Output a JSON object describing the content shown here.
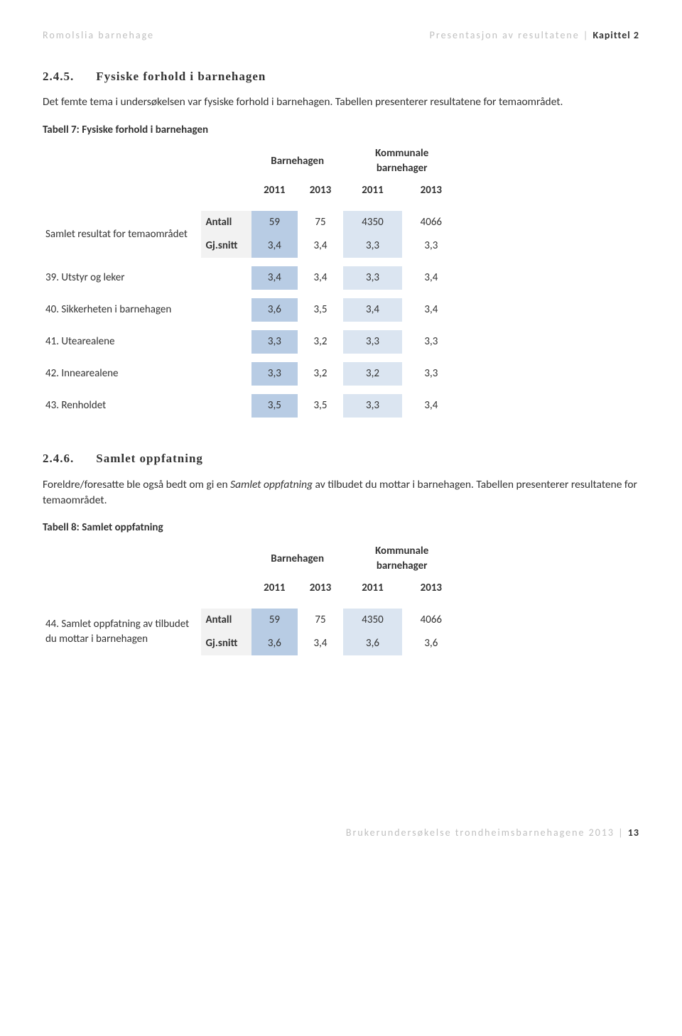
{
  "header": {
    "left": "Romolslia barnehage",
    "right_prefix": "Presentasjon av resultatene",
    "right_sep": " | ",
    "right_chapter": "Kapittel 2"
  },
  "colors": {
    "col1_bg": "#b8cce4",
    "col3_bg": "#dbe5f1",
    "label_bg": "#f2f2f2",
    "text": "#333333",
    "muted": "#bfbfbf"
  },
  "section1": {
    "num": "2.4.5.",
    "title": "Fysiske forhold i barnehagen",
    "para": "Det femte tema i undersøkelsen var fysiske forhold i barnehagen. Tabellen presenterer resultatene for temaområdet.",
    "caption": "Tabell 7: Fysiske forhold i barnehagen",
    "group1": "Barnehagen",
    "group2": "Kommunale barnehager",
    "years": [
      "2011",
      "2013",
      "2011",
      "2013"
    ],
    "block_label": "Samlet resultat for temaområdet",
    "antall_label": "Antall",
    "antall": [
      "59",
      "75",
      "4350",
      "4066"
    ],
    "gjsnitt_label": "Gj.snitt",
    "gjsnitt": [
      "3,4",
      "3,4",
      "3,3",
      "3,3"
    ],
    "rows": [
      {
        "label": "39. Utstyr og leker",
        "vals": [
          "3,4",
          "3,4",
          "3,3",
          "3,4"
        ]
      },
      {
        "label": "40. Sikkerheten i barnehagen",
        "vals": [
          "3,6",
          "3,5",
          "3,4",
          "3,4"
        ]
      },
      {
        "label": "41. Utearealene",
        "vals": [
          "3,3",
          "3,2",
          "3,3",
          "3,3"
        ]
      },
      {
        "label": "42. Innearealene",
        "vals": [
          "3,3",
          "3,2",
          "3,2",
          "3,3"
        ]
      },
      {
        "label": "43. Renholdet",
        "vals": [
          "3,5",
          "3,5",
          "3,3",
          "3,4"
        ]
      }
    ]
  },
  "section2": {
    "num": "2.4.6.",
    "title": "Samlet oppfatning",
    "para_pre": "Foreldre/foresatte ble også bedt om gi en ",
    "para_em": "Samlet oppfatning",
    "para_post": " av tilbudet du mottar i barnehagen. Tabellen presenterer resultatene for temaområdet.",
    "caption": "Tabell 8: Samlet oppfatning",
    "group1": "Barnehagen",
    "group2": "Kommunale barnehager",
    "years": [
      "2011",
      "2013",
      "2011",
      "2013"
    ],
    "block_label": "44. Samlet oppfatning av tilbudet du mottar i barnehagen",
    "antall_label": "Antall",
    "antall": [
      "59",
      "75",
      "4350",
      "4066"
    ],
    "gjsnitt_label": "Gj.snitt",
    "gjsnitt": [
      "3,6",
      "3,4",
      "3,6",
      "3,6"
    ]
  },
  "footer": {
    "text": "Brukerundersøkelse trondheimsbarnehagene 2013",
    "sep": " | ",
    "page": "13"
  }
}
